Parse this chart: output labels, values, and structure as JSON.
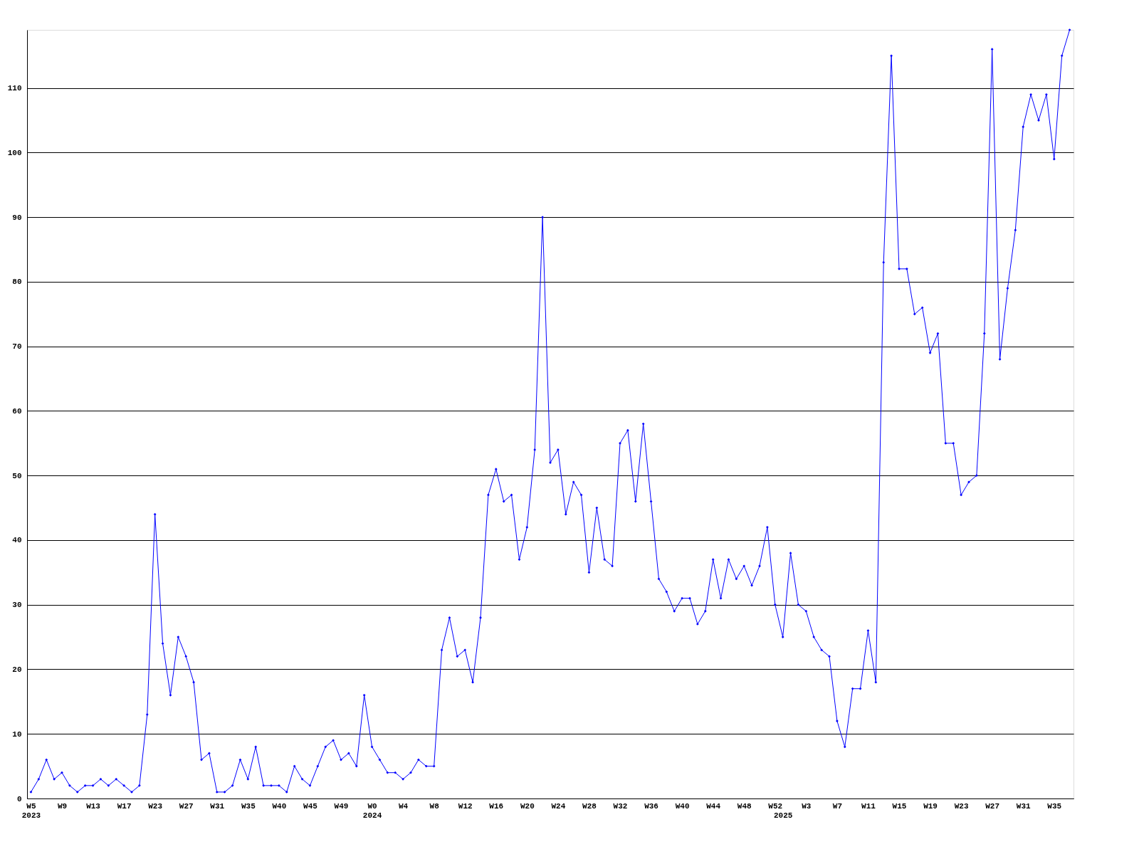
{
  "chart_data": {
    "type": "line",
    "categories": [
      "W5\n2023",
      null,
      null,
      null,
      "W9",
      null,
      null,
      null,
      "W13",
      null,
      null,
      null,
      "W17",
      null,
      null,
      null,
      "W23",
      null,
      null,
      null,
      "W27",
      null,
      null,
      null,
      "W31",
      null,
      null,
      null,
      "W35",
      null,
      null,
      null,
      "W40",
      null,
      null,
      null,
      "W45",
      null,
      null,
      null,
      "W49",
      null,
      null,
      null,
      "W0\n2024",
      null,
      null,
      null,
      "W4",
      null,
      null,
      null,
      "W8",
      null,
      null,
      null,
      "W12",
      null,
      null,
      null,
      "W16",
      null,
      null,
      null,
      "W20",
      null,
      null,
      null,
      "W24",
      null,
      null,
      null,
      "W28",
      null,
      null,
      null,
      "W32",
      null,
      null,
      null,
      "W36",
      null,
      null,
      null,
      "W40",
      null,
      null,
      null,
      "W44",
      null,
      null,
      null,
      "W48",
      null,
      null,
      null,
      "W52",
      "\n2025",
      null,
      null,
      "W3",
      null,
      null,
      null,
      "W7",
      null,
      null,
      null,
      "W11",
      null,
      null,
      null,
      "W15",
      null,
      null,
      null,
      "W19",
      null,
      null,
      null,
      "W23",
      null,
      null,
      null,
      "W27",
      null,
      null,
      null,
      "W31",
      null,
      null,
      null,
      "W35",
      null,
      null
    ],
    "series": [
      {
        "color": "#0000ff",
        "values": [
          1,
          3,
          6,
          3,
          4,
          2,
          1,
          2,
          2,
          3,
          2,
          3,
          2,
          1,
          2,
          13,
          44,
          24,
          16,
          25,
          22,
          18,
          6,
          7,
          1,
          1,
          2,
          6,
          3,
          8,
          2,
          2,
          2,
          1,
          5,
          3,
          2,
          5,
          8,
          9,
          6,
          7,
          5,
          16,
          8,
          6,
          4,
          4,
          3,
          4,
          6,
          5,
          5,
          23,
          28,
          22,
          23,
          18,
          28,
          47,
          51,
          46,
          47,
          37,
          42,
          54,
          90,
          52,
          54,
          44,
          49,
          47,
          35,
          45,
          37,
          36,
          55,
          57,
          46,
          58,
          46,
          34,
          32,
          29,
          31,
          31,
          27,
          29,
          37,
          31,
          37,
          34,
          36,
          33,
          36,
          42,
          30,
          25,
          38,
          30,
          29,
          25,
          23,
          22,
          12,
          8,
          17,
          17,
          26,
          18,
          83,
          115,
          82,
          82,
          75,
          76,
          69,
          72,
          55,
          55,
          47,
          49,
          50,
          72,
          116,
          68,
          79,
          88,
          104,
          109,
          105,
          109,
          99,
          115,
          119
        ]
      }
    ],
    "ylim": [
      0,
      119
    ],
    "yticks": [
      0,
      10,
      20,
      30,
      40,
      50,
      60,
      70,
      80,
      90,
      100,
      110
    ],
    "grid": "y",
    "legend": false,
    "marker": "diamond",
    "line_style": "solid"
  }
}
